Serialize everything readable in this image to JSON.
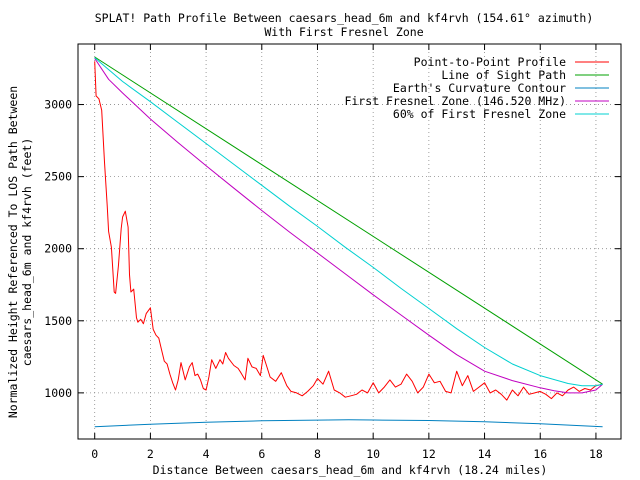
{
  "chart_data": {
    "type": "line",
    "title": "SPLAT! Path Profile Between caesars_head_6m and kf4rvh (154.61° azimuth)",
    "subtitle": "With First Fresnel Zone",
    "xlabel": "Distance Between caesars_head_6m and kf4rvh (18.24 miles)",
    "ylabel_line1": "Normalized Height Referenced To LOS Path Between",
    "ylabel_line2": "caesars_head_6m and kf4rvh (feet)",
    "xlim": [
      -0.6,
      18.9
    ],
    "ylim": [
      680,
      3420
    ],
    "x_ticks": [
      0,
      2,
      4,
      6,
      8,
      10,
      12,
      14,
      16,
      18
    ],
    "y_ticks": [
      1000,
      1500,
      2000,
      2500,
      3000
    ],
    "grid": "dotted",
    "legend_position": "top-right",
    "series": [
      {
        "name": "Point-to-Point Profile",
        "color": "#ff0000",
        "x": [
          0,
          0.05,
          0.15,
          0.25,
          0.35,
          0.45,
          0.5,
          0.6,
          0.7,
          0.75,
          0.85,
          0.95,
          1.0,
          1.1,
          1.2,
          1.25,
          1.3,
          1.4,
          1.5,
          1.55,
          1.65,
          1.75,
          1.85,
          2.0,
          2.1,
          2.2,
          2.3,
          2.4,
          2.5,
          2.6,
          2.7,
          2.8,
          2.9,
          3.0,
          3.1,
          3.25,
          3.4,
          3.5,
          3.6,
          3.7,
          3.8,
          3.9,
          4.0,
          4.1,
          4.2,
          4.35,
          4.5,
          4.6,
          4.7,
          4.8,
          5.0,
          5.15,
          5.25,
          5.4,
          5.5,
          5.65,
          5.8,
          5.95,
          6.05,
          6.15,
          6.3,
          6.5,
          6.7,
          6.9,
          7.05,
          7.25,
          7.45,
          7.65,
          7.85,
          8.0,
          8.2,
          8.4,
          8.6,
          8.8,
          9.0,
          9.2,
          9.4,
          9.6,
          9.8,
          10.0,
          10.2,
          10.4,
          10.6,
          10.8,
          11.0,
          11.2,
          11.4,
          11.6,
          11.8,
          12.0,
          12.2,
          12.4,
          12.6,
          12.8,
          13.0,
          13.2,
          13.4,
          13.6,
          13.8,
          14.0,
          14.2,
          14.4,
          14.6,
          14.8,
          15.0,
          15.2,
          15.4,
          15.6,
          15.8,
          16.0,
          16.2,
          16.4,
          16.6,
          16.8,
          17.0,
          17.2,
          17.4,
          17.6,
          17.8,
          18.0,
          18.24
        ],
        "y": [
          3300,
          3060,
          3040,
          2960,
          2600,
          2300,
          2120,
          2010,
          1700,
          1690,
          1880,
          2140,
          2220,
          2260,
          2150,
          1820,
          1700,
          1720,
          1520,
          1490,
          1510,
          1480,
          1550,
          1590,
          1440,
          1400,
          1380,
          1300,
          1220,
          1200,
          1130,
          1070,
          1020,
          1090,
          1210,
          1090,
          1180,
          1210,
          1120,
          1130,
          1090,
          1030,
          1020,
          1110,
          1230,
          1170,
          1230,
          1200,
          1280,
          1240,
          1190,
          1170,
          1140,
          1090,
          1240,
          1180,
          1170,
          1120,
          1260,
          1200,
          1110,
          1080,
          1140,
          1050,
          1010,
          1000,
          980,
          1010,
          1050,
          1100,
          1060,
          1150,
          1020,
          1000,
          970,
          980,
          990,
          1020,
          1000,
          1070,
          1000,
          1040,
          1090,
          1040,
          1060,
          1130,
          1080,
          1000,
          1040,
          1130,
          1070,
          1080,
          1010,
          1000,
          1150,
          1050,
          1120,
          1010,
          1040,
          1070,
          1000,
          1020,
          990,
          950,
          1020,
          980,
          1040,
          990,
          1000,
          1010,
          990,
          960,
          1000,
          980,
          1020,
          1040,
          1010,
          1030,
          1020,
          1050,
          1060
        ]
      },
      {
        "name": "Line of Sight Path",
        "color": "#00a000",
        "x": [
          0,
          18.24
        ],
        "y": [
          3330,
          1060
        ]
      },
      {
        "name": "Earth's Curvature Contour",
        "color": "#0080c0",
        "x": [
          0,
          2,
          4,
          6,
          8,
          9.12,
          10,
          12,
          14,
          16,
          18.24
        ],
        "y": [
          765,
          782,
          796,
          806,
          811,
          813,
          812,
          808,
          799,
          786,
          765
        ]
      },
      {
        "name": "First Fresnel Zone (146.520 MHz)",
        "color": "#c000c0",
        "x": [
          0,
          0.5,
          1,
          2,
          3,
          4,
          5,
          6,
          7,
          8,
          9,
          10,
          11,
          12,
          13,
          14,
          15,
          16,
          16.5,
          17,
          17.5,
          18,
          18.24
        ],
        "y": [
          3320,
          3175,
          3080,
          2900,
          2735,
          2575,
          2420,
          2265,
          2115,
          1970,
          1825,
          1680,
          1540,
          1400,
          1265,
          1150,
          1085,
          1035,
          1015,
          1000,
          1000,
          1020,
          1060
        ]
      },
      {
        "name": "60% of First Fresnel Zone",
        "color": "#00d0d0",
        "x": [
          0,
          1,
          2,
          3,
          4,
          5,
          6,
          7,
          8,
          9,
          10,
          11,
          12,
          13,
          14,
          15,
          16,
          17,
          17.5,
          18,
          18.24
        ],
        "y": [
          3325,
          3160,
          3020,
          2875,
          2730,
          2585,
          2440,
          2295,
          2155,
          2010,
          1870,
          1725,
          1585,
          1445,
          1315,
          1200,
          1120,
          1065,
          1050,
          1050,
          1060
        ]
      }
    ]
  }
}
